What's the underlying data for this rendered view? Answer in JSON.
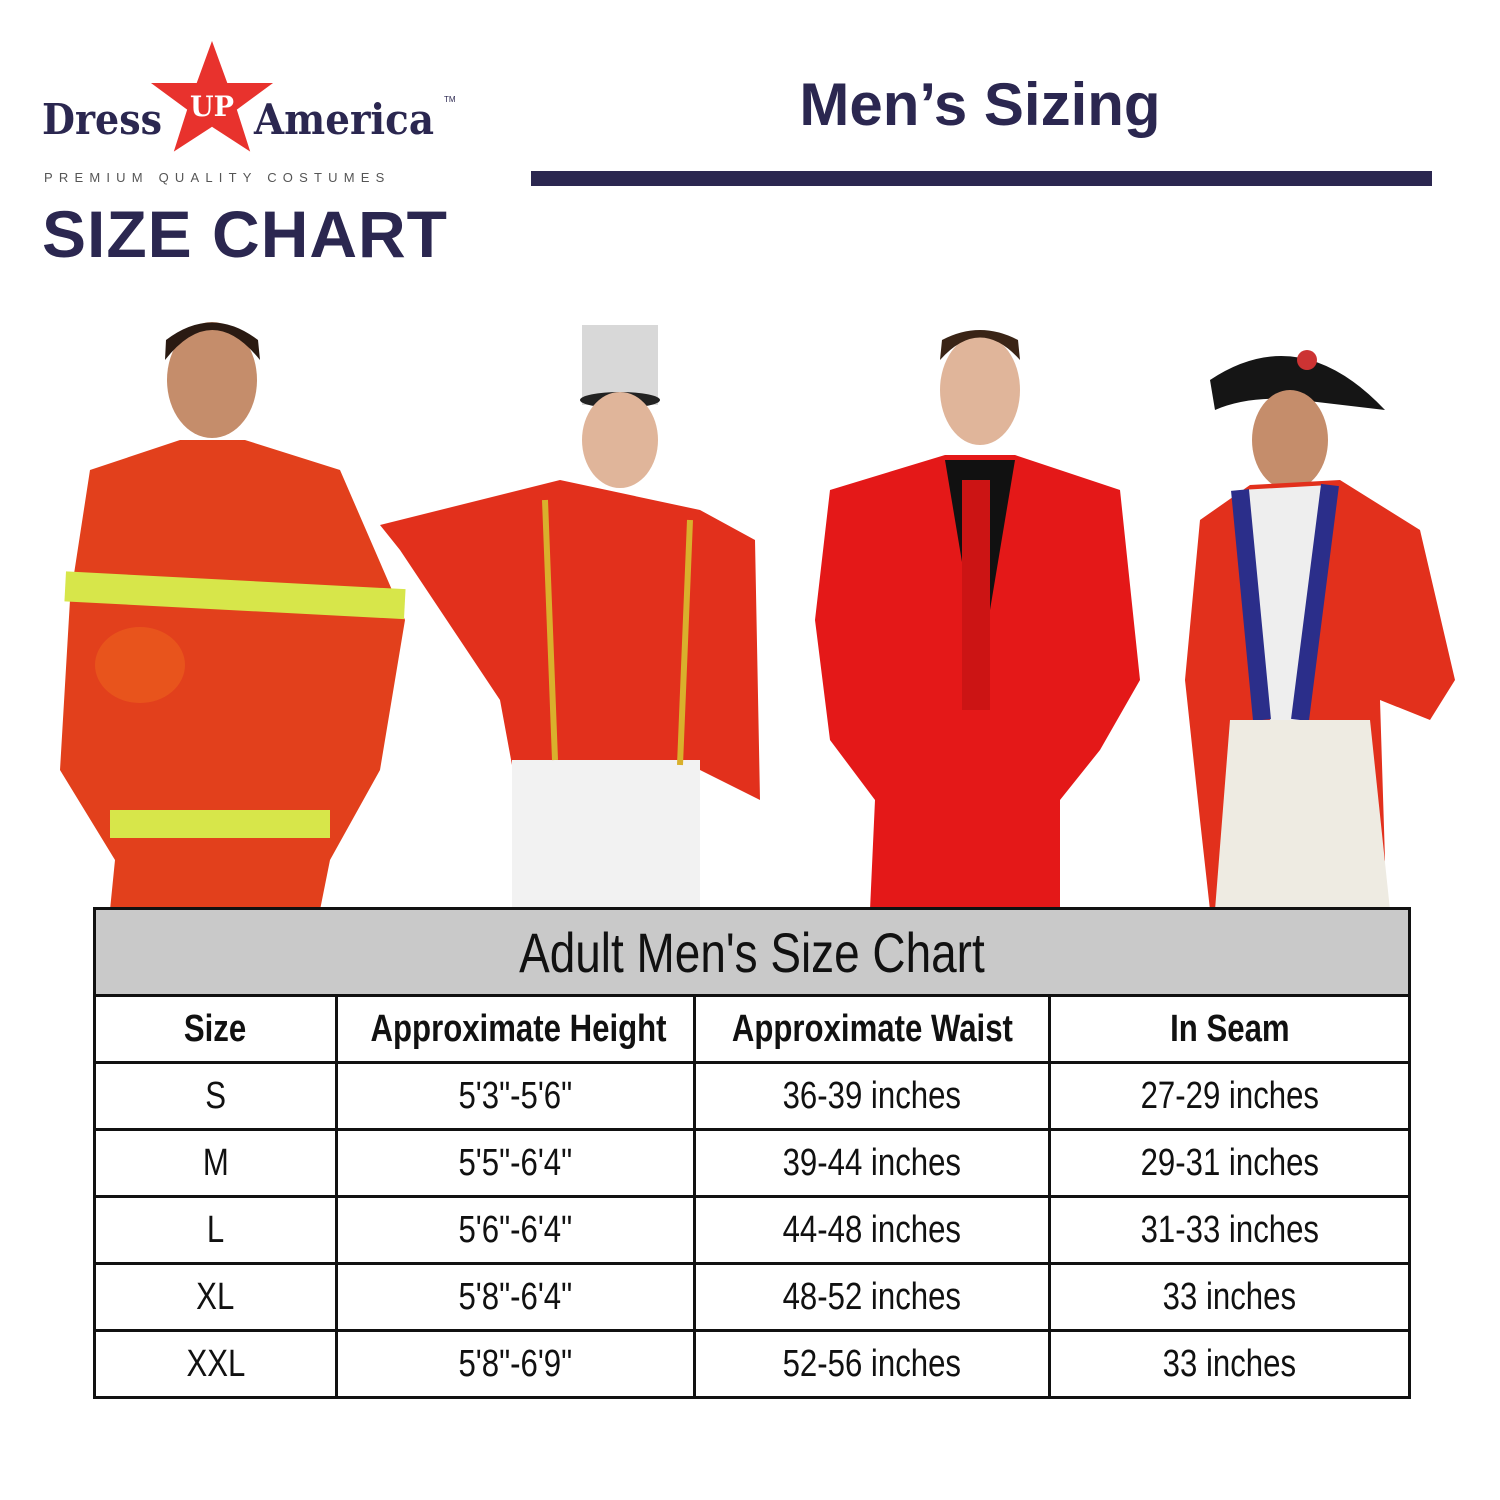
{
  "brand": {
    "logo_text": "Dress UP America™",
    "tagline": "PREMIUM QUALITY COSTUMES",
    "heading": "SIZE CHART"
  },
  "page_title": "Men’s Sizing",
  "colors": {
    "navy": "#2b2750",
    "star_red": "#e8322d",
    "table_title_bg": "#c9c9c9"
  },
  "photos": [
    "firefighter-costume",
    "toy-soldier-costume",
    "red-suit-costume",
    "colonial-redcoat-costume"
  ],
  "table": {
    "title": "Adult Men's Size Chart",
    "headers": [
      "Size",
      "Approximate Height",
      "Approximate Waist",
      "In Seam"
    ],
    "rows": [
      [
        "S",
        "5'3\"-5'6\"",
        "36-39 inches",
        "27-29 inches"
      ],
      [
        "M",
        "5'5\"-6'4\"",
        "39-44 inches",
        "29-31 inches"
      ],
      [
        "L",
        "5'6\"-6'4\"",
        "44-48 inches",
        "31-33 inches"
      ],
      [
        "XL",
        "5'8\"-6'4\"",
        "48-52 inches",
        "33 inches"
      ],
      [
        "XXL",
        "5'8\"-6'9\"",
        "52-56 inches",
        "33 inches"
      ]
    ]
  }
}
